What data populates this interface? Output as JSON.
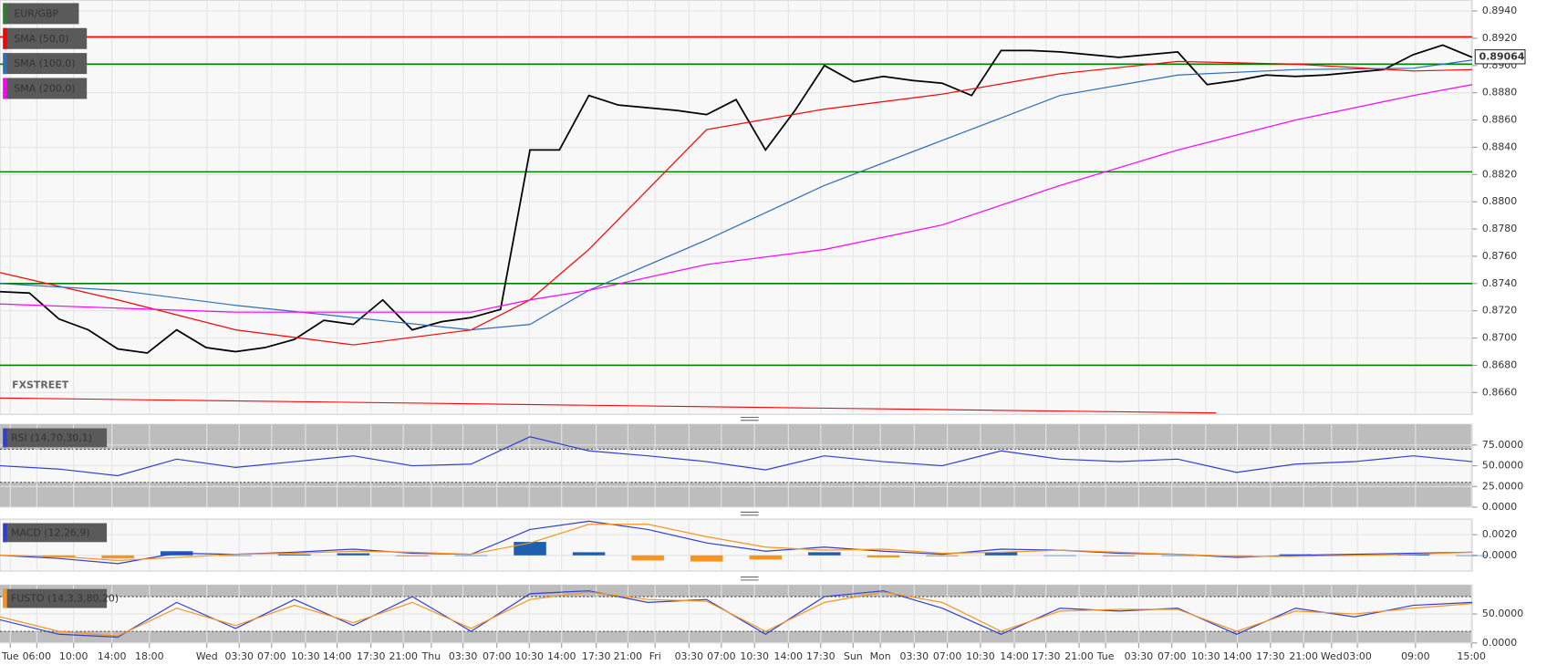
{
  "chart_data": [
    {
      "type": "line",
      "title": "EUR/GBP",
      "watermark": "FXSTREET",
      "xlim": [
        0,
        200
      ],
      "xticks": [
        {
          "value": 1.4,
          "label": "Tue"
        },
        {
          "value": 5.0,
          "label": "06:00"
        },
        {
          "value": 10.0,
          "label": "10:00"
        },
        {
          "value": 15.2,
          "label": "14:00"
        },
        {
          "value": 20.3,
          "label": "18:00"
        },
        {
          "value": 28.1,
          "label": "Wed"
        },
        {
          "value": 32.5,
          "label": "03:30"
        },
        {
          "value": 36.9,
          "label": "07:00"
        },
        {
          "value": 41.5,
          "label": "10:30"
        },
        {
          "value": 45.8,
          "label": "14:00"
        },
        {
          "value": 50.4,
          "label": "17:30"
        },
        {
          "value": 54.8,
          "label": "21:00"
        },
        {
          "value": 58.6,
          "label": "Thu"
        },
        {
          "value": 62.9,
          "label": "03:30"
        },
        {
          "value": 67.5,
          "label": "07:00"
        },
        {
          "value": 71.9,
          "label": "10:30"
        },
        {
          "value": 76.3,
          "label": "14:00"
        },
        {
          "value": 81.0,
          "label": "17:30"
        },
        {
          "value": 85.3,
          "label": "21:00"
        },
        {
          "value": 89.0,
          "label": "Fri"
        },
        {
          "value": 93.6,
          "label": "03:30"
        },
        {
          "value": 98.0,
          "label": "07:00"
        },
        {
          "value": 102.5,
          "label": "10:30"
        },
        {
          "value": 107.1,
          "label": "14:00"
        },
        {
          "value": 111.5,
          "label": "17:30"
        },
        {
          "value": 115.9,
          "label": "Sun"
        },
        {
          "value": 119.6,
          "label": "Mon"
        },
        {
          "value": 124.2,
          "label": "03:30"
        },
        {
          "value": 128.7,
          "label": "07:00"
        },
        {
          "value": 133.2,
          "label": "10:30"
        },
        {
          "value": 137.8,
          "label": "14:00"
        },
        {
          "value": 142.1,
          "label": "17:30"
        },
        {
          "value": 146.6,
          "label": "21:00"
        },
        {
          "value": 150.2,
          "label": "Tue"
        },
        {
          "value": 154.7,
          "label": "03:30"
        },
        {
          "value": 159.2,
          "label": "07:00"
        },
        {
          "value": 163.8,
          "label": "10:30"
        },
        {
          "value": 168.1,
          "label": "14:00"
        },
        {
          "value": 172.6,
          "label": "17:30"
        },
        {
          "value": 177.1,
          "label": "21:00"
        },
        {
          "value": 180.9,
          "label": "Wed"
        },
        {
          "value": 184.4,
          "label": "03:00"
        },
        {
          "value": 192.3,
          "label": "09:00"
        },
        {
          "value": 199.9,
          "label": "15:00"
        }
      ],
      "ylim": [
        0.8644,
        0.8948
      ],
      "yticks": [
        {
          "value": 0.894,
          "label": "0.8940"
        },
        {
          "value": 0.892,
          "label": "0.8920"
        },
        {
          "value": 0.89,
          "label": "0.8900"
        },
        {
          "value": 0.888,
          "label": "0.8880"
        },
        {
          "value": 0.886,
          "label": "0.8860"
        },
        {
          "value": 0.884,
          "label": "0.8840"
        },
        {
          "value": 0.882,
          "label": "0.8820"
        },
        {
          "value": 0.88,
          "label": "0.8800"
        },
        {
          "value": 0.878,
          "label": "0.8780"
        },
        {
          "value": 0.876,
          "label": "0.8760"
        },
        {
          "value": 0.874,
          "label": "0.8740"
        },
        {
          "value": 0.872,
          "label": "0.8720"
        },
        {
          "value": 0.87,
          "label": "0.8700"
        },
        {
          "value": 0.868,
          "label": "0.8680"
        },
        {
          "value": 0.866,
          "label": "0.8660"
        }
      ],
      "grid": true,
      "last_value": {
        "value": 0.89064,
        "label": "0.89064"
      },
      "series": [
        {
          "name": "EUR/GBP",
          "color": "#000000",
          "x": [
            0,
            4,
            8,
            12,
            16,
            20,
            24,
            28,
            32,
            36,
            40,
            44,
            48,
            52,
            56,
            60,
            64,
            68,
            72,
            76,
            80,
            84,
            88,
            92,
            96,
            100,
            104,
            108,
            112,
            116,
            120,
            124,
            128,
            132,
            136,
            140,
            144,
            148,
            152,
            156,
            160,
            164,
            168,
            172,
            176,
            180,
            184,
            188,
            192,
            196,
            200
          ],
          "values": [
            0.8734,
            0.8733,
            0.8714,
            0.8706,
            0.8692,
            0.8689,
            0.8706,
            0.8693,
            0.869,
            0.8693,
            0.8699,
            0.8713,
            0.871,
            0.8728,
            0.8706,
            0.8712,
            0.8715,
            0.8721,
            0.8838,
            0.8838,
            0.8878,
            0.8871,
            0.8869,
            0.8867,
            0.8864,
            0.8875,
            0.8838,
            0.8867,
            0.89,
            0.8888,
            0.8892,
            0.8889,
            0.8887,
            0.8878,
            0.8911,
            0.8911,
            0.891,
            0.8908,
            0.8906,
            0.8908,
            0.891,
            0.8886,
            0.8889,
            0.8893,
            0.8892,
            0.8893,
            0.8895,
            0.8897,
            0.8908,
            0.8915,
            0.8906
          ]
        },
        {
          "name": "SMA (50,0)",
          "color": "#ff0000",
          "x": [
            0,
            16,
            32,
            48,
            64,
            72,
            80,
            96,
            112,
            128,
            144,
            160,
            176,
            192,
            200
          ],
          "values": [
            0.8748,
            0.8728,
            0.8706,
            0.8695,
            0.8706,
            0.8728,
            0.8765,
            0.8853,
            0.8868,
            0.8879,
            0.8894,
            0.8903,
            0.8901,
            0.8896,
            0.8897
          ]
        },
        {
          "name": "SMA (100,0)",
          "color": "#2f6db5",
          "x": [
            0,
            16,
            32,
            48,
            64,
            72,
            80,
            96,
            112,
            128,
            144,
            160,
            176,
            192,
            200
          ],
          "values": [
            0.874,
            0.8735,
            0.8724,
            0.8715,
            0.8706,
            0.871,
            0.8735,
            0.8772,
            0.8812,
            0.8845,
            0.8878,
            0.8893,
            0.8897,
            0.8898,
            0.8904
          ]
        },
        {
          "name": "SMA (200,0)",
          "color": "#ff00ff",
          "x": [
            0,
            16,
            32,
            48,
            64,
            72,
            80,
            96,
            112,
            128,
            144,
            160,
            176,
            192,
            200
          ],
          "values": [
            0.8725,
            0.8722,
            0.8719,
            0.8719,
            0.8719,
            0.8728,
            0.8735,
            0.8754,
            0.8765,
            0.8783,
            0.8812,
            0.8838,
            0.886,
            0.8878,
            0.8886
          ]
        }
      ],
      "levels": [
        {
          "value": 0.8921,
          "color": "#ff0000"
        },
        {
          "value": 0.8901,
          "color": "#008000"
        },
        {
          "value": 0.8822,
          "color": "#008000"
        },
        {
          "value": 0.874,
          "color": "#008000"
        },
        {
          "value": 0.868,
          "color": "#008000"
        }
      ],
      "trendline": {
        "color": "#ff0000",
        "x": [
          0,
          165.2
        ],
        "values": [
          0.8656,
          0.8645
        ]
      }
    },
    {
      "type": "line",
      "title": "RSI (14,70,30,1)",
      "xlim": [
        0,
        200
      ],
      "ylim": [
        0,
        100
      ],
      "yticks": [
        {
          "value": 75,
          "label": "75.0000"
        },
        {
          "value": 50,
          "label": "50.0000"
        },
        {
          "value": 25,
          "label": "25.0000"
        },
        {
          "value": 0,
          "label": "0.0000"
        }
      ],
      "overbought": 70,
      "oversold": 30,
      "title_color": "#2f3fd0",
      "x": [
        0,
        8,
        16,
        24,
        32,
        40,
        48,
        56,
        64,
        72,
        80,
        88,
        96,
        104,
        112,
        120,
        128,
        136,
        144,
        152,
        160,
        168,
        176,
        184,
        192,
        200
      ],
      "series": [
        {
          "color": "#2f3fd0",
          "values": [
            50,
            46,
            38,
            58,
            48,
            55,
            62,
            50,
            52,
            85,
            68,
            62,
            55,
            45,
            62,
            55,
            50,
            68,
            58,
            55,
            58,
            42,
            52,
            55,
            62,
            55
          ]
        }
      ]
    },
    {
      "type": "macd",
      "title": "MACD (12,26,9)",
      "xlim": [
        0,
        200
      ],
      "ylim": [
        -0.00152,
        0.0035
      ],
      "yticks": [
        {
          "value": 0.002,
          "label": "0.0020"
        },
        {
          "value": 0,
          "label": "0.0000"
        }
      ],
      "title_color": "#2f3fd0",
      "x": [
        0,
        8,
        16,
        24,
        32,
        40,
        48,
        56,
        64,
        72,
        80,
        88,
        96,
        104,
        112,
        120,
        128,
        136,
        144,
        152,
        160,
        168,
        176,
        184,
        192,
        200
      ],
      "histogram": {
        "colors": [
          "#1f5fb0",
          "#f7941d"
        ],
        "values": [
          0,
          -0.0002,
          -0.0003,
          0.0004,
          0,
          0.0001,
          0.0002,
          -0.0001,
          0,
          0.0013,
          0.0003,
          -0.0005,
          -0.0006,
          -0.0004,
          0.0003,
          -0.0002,
          -0.0001,
          0.0003,
          0,
          -0.0001,
          0,
          -0.0001,
          0.0001,
          0.0001,
          0.0001,
          0
        ]
      },
      "series": [
        {
          "color": "#2f3fd0",
          "values": [
            0,
            -0.0003,
            -0.0008,
            0.0002,
            0.0001,
            0.0003,
            0.0006,
            0.0002,
            0.0001,
            0.0025,
            0.0033,
            0.0025,
            0.0012,
            0.0004,
            0.0008,
            0.0004,
            0.0001,
            0.0006,
            0.0005,
            0.0002,
            0.0001,
            -0.0002,
            0,
            0.0001,
            0.0002,
            0.0003
          ]
        },
        {
          "color": "#f7941d",
          "values": [
            0,
            -0.0001,
            -0.0005,
            -0.0002,
            0.0001,
            0.0002,
            0.0004,
            0.0003,
            0.0001,
            0.0012,
            0.003,
            0.003,
            0.0018,
            0.0008,
            0.0005,
            0.0006,
            0.0002,
            0.0003,
            0.0005,
            0.0003,
            0.0001,
            -0.0001,
            -0.0001,
            0,
            0.0001,
            0.0003
          ]
        }
      ]
    },
    {
      "type": "line",
      "title": "FUSTO (14,3,3,80,20)",
      "xlim": [
        0,
        200
      ],
      "ylim": [
        0,
        100
      ],
      "yticks": [
        {
          "value": 50,
          "label": "50.0000"
        },
        {
          "value": 0,
          "label": "0.0000"
        }
      ],
      "overbought": 80,
      "oversold": 20,
      "title_color": "#f7941d",
      "x": [
        0,
        8,
        16,
        24,
        32,
        40,
        48,
        56,
        64,
        72,
        80,
        88,
        96,
        104,
        112,
        120,
        128,
        136,
        144,
        152,
        160,
        168,
        176,
        184,
        192,
        200
      ],
      "series": [
        {
          "color": "#2f3fd0",
          "values": [
            40,
            15,
            10,
            70,
            25,
            75,
            30,
            80,
            20,
            85,
            90,
            70,
            75,
            15,
            80,
            90,
            60,
            15,
            60,
            55,
            60,
            15,
            60,
            45,
            65,
            70
          ]
        },
        {
          "color": "#f7941d",
          "values": [
            45,
            20,
            12,
            60,
            30,
            65,
            35,
            70,
            25,
            75,
            88,
            75,
            72,
            20,
            70,
            88,
            70,
            20,
            55,
            58,
            58,
            20,
            55,
            50,
            60,
            68
          ]
        }
      ]
    }
  ]
}
